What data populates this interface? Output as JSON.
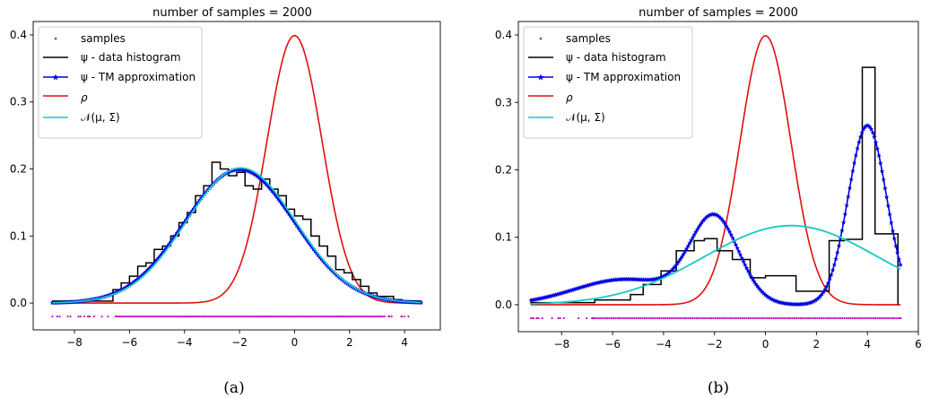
{
  "colors": {
    "samples": "#c000c0",
    "histogram": "#000000",
    "tm": "#0000e0",
    "rho": "#e01010",
    "normal": "#17c7c7"
  },
  "legend_labels": [
    "samples",
    "ψ - data histogram",
    "ψ - TM approximation",
    "ρ",
    "𝒩(μ, Σ)"
  ],
  "chart_data": [
    {
      "type": "line",
      "panel": "a",
      "caption": "(a)",
      "title": "number of samples = 2000",
      "xlabel": "",
      "ylabel": "",
      "xlim": [
        -9.5,
        5.3
      ],
      "ylim": [
        -0.04,
        0.42
      ],
      "xticks": [
        -8,
        -6,
        -4,
        -2,
        0,
        2,
        4
      ],
      "yticks": [
        0.0,
        0.1,
        0.2,
        0.3,
        0.4
      ],
      "legend_position": "top-left",
      "grid": false,
      "series": [
        {
          "name": "samples",
          "kind": "points",
          "y_level": -0.02,
          "x_range": [
            -8.8,
            4.6
          ],
          "dense_range": [
            -6.5,
            3.2
          ]
        },
        {
          "name": "ψ - data histogram",
          "kind": "step",
          "edges": [
            -8.8,
            -6.6,
            -6.3,
            -6.0,
            -5.7,
            -5.4,
            -5.1,
            -4.8,
            -4.5,
            -4.2,
            -3.9,
            -3.6,
            -3.3,
            -3.0,
            -2.7,
            -2.4,
            -2.1,
            -1.8,
            -1.5,
            -1.2,
            -0.9,
            -0.6,
            -0.3,
            0.0,
            0.3,
            0.6,
            0.9,
            1.2,
            1.5,
            1.8,
            2.1,
            2.4,
            2.7,
            3.0,
            3.3,
            3.6,
            3.9,
            4.6
          ],
          "values": [
            0.003,
            0.02,
            0.03,
            0.04,
            0.055,
            0.06,
            0.08,
            0.085,
            0.1,
            0.12,
            0.135,
            0.16,
            0.175,
            0.21,
            0.2,
            0.19,
            0.195,
            0.175,
            0.17,
            0.185,
            0.17,
            0.16,
            0.14,
            0.13,
            0.125,
            0.1,
            0.085,
            0.07,
            0.05,
            0.045,
            0.035,
            0.025,
            0.015,
            0.01,
            0.01,
            0.005,
            0.003
          ]
        },
        {
          "name": "ψ - TM approximation",
          "kind": "gaussian_mix",
          "x_range": [
            -8.8,
            4.6
          ],
          "components": [
            {
              "w": 1.0,
              "mu": -2.0,
              "sigma": 2.0
            }
          ],
          "markers": true
        },
        {
          "name": "ρ",
          "kind": "gaussian_mix",
          "x_range": [
            -8.8,
            4.6
          ],
          "components": [
            {
              "w": 1.0,
              "mu": 0.0,
              "sigma": 1.0
            }
          ]
        },
        {
          "name": "𝒩(μ, Σ)",
          "kind": "gaussian_mix",
          "x_range": [
            -8.8,
            4.6
          ],
          "components": [
            {
              "w": 1.0,
              "mu": -1.95,
              "sigma": 1.98
            }
          ]
        }
      ]
    },
    {
      "type": "line",
      "panel": "b",
      "caption": "(b)",
      "title": "number of samples = 2000",
      "xlabel": "",
      "ylabel": "",
      "xlim": [
        -9.7,
        6.0
      ],
      "ylim": [
        -0.04,
        0.42
      ],
      "xticks": [
        -8,
        -6,
        -4,
        -2,
        0,
        2,
        4,
        6
      ],
      "yticks": [
        0.0,
        0.1,
        0.2,
        0.3,
        0.4
      ],
      "legend_position": "top-left",
      "grid": false,
      "series": [
        {
          "name": "samples",
          "kind": "points",
          "y_level": -0.02,
          "x_range": [
            -9.2,
            5.3
          ],
          "dense_range": [
            -6.7,
            5.3
          ]
        },
        {
          "name": "ψ - data histogram",
          "kind": "step",
          "edges": [
            -9.2,
            -6.7,
            -5.3,
            -4.8,
            -4.1,
            -3.5,
            -2.8,
            -2.4,
            -1.9,
            -1.3,
            -0.6,
            0.0,
            1.2,
            2.5,
            3.1,
            3.8,
            4.3,
            5.2
          ],
          "values": [
            0.003,
            0.007,
            0.015,
            0.03,
            0.05,
            0.08,
            0.095,
            0.098,
            0.08,
            0.067,
            0.04,
            0.043,
            0.02,
            0.095,
            0.097,
            0.352,
            0.105
          ]
        },
        {
          "name": "ψ - TM approximation",
          "kind": "gaussian_mix",
          "x_range": [
            -9.2,
            5.3
          ],
          "components": [
            {
              "w": 0.3,
              "mu": -2.0,
              "sigma": 0.95
            },
            {
              "w": 0.5,
              "mu": 4.0,
              "sigma": 0.75
            },
            {
              "w": 0.19,
              "mu": -5.5,
              "sigma": 2.0
            }
          ],
          "markers": true
        },
        {
          "name": "ρ",
          "kind": "gaussian_mix",
          "x_range": [
            -9.2,
            5.3
          ],
          "components": [
            {
              "w": 1.0,
              "mu": 0.0,
              "sigma": 1.0
            }
          ]
        },
        {
          "name": "𝒩(μ, Σ)",
          "kind": "gaussian_mix",
          "x_range": [
            -9.2,
            5.3
          ],
          "components": [
            {
              "w": 1.0,
              "mu": 1.0,
              "sigma": 3.4
            }
          ]
        }
      ]
    }
  ]
}
